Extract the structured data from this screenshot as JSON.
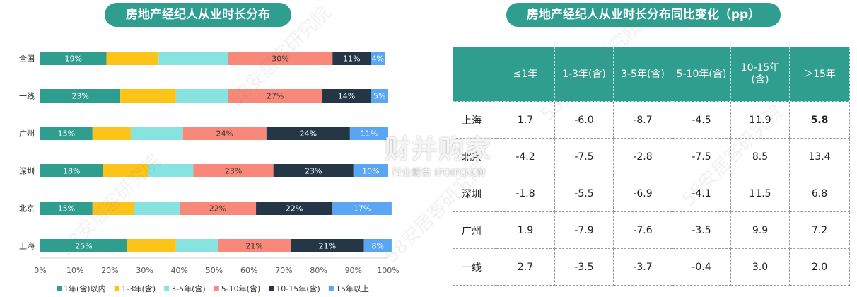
{
  "left_title": "房地产经纪人从业时长分布",
  "right_title": "房地产经纪人从业时长分布同比变化（pp）",
  "colors": [
    "#2f9e8f",
    "#fcc419",
    "#87e3df",
    "#f8897a",
    "#253746",
    "#5ba6f3"
  ],
  "chart_data": [
    {
      "type": "bar",
      "orientation": "horizontal",
      "stacked": true,
      "title": "房地产经纪人从业时长分布",
      "categories": [
        "全国",
        "一线",
        "广州",
        "深圳",
        "北京",
        "上海"
      ],
      "series": [
        {
          "name": "1年(含)以内",
          "values": [
            19,
            23,
            15,
            18,
            15,
            25
          ]
        },
        {
          "name": "1-3年(含)",
          "values": [
            15,
            16,
            11,
            13,
            12,
            14
          ]
        },
        {
          "name": "3-5年(含)",
          "values": [
            20,
            15,
            15,
            13,
            13,
            12
          ]
        },
        {
          "name": "5-10年(含)",
          "values": [
            30,
            27,
            24,
            23,
            22,
            21
          ]
        },
        {
          "name": "10-15年(含)",
          "values": [
            11,
            14,
            24,
            23,
            22,
            21
          ]
        },
        {
          "name": "15年以上",
          "values": [
            4,
            5,
            11,
            10,
            17,
            8
          ]
        }
      ],
      "data_labels": [
        [
          "19%",
          "",
          "",
          "30%",
          "11%",
          "4%"
        ],
        [
          "23%",
          "",
          "",
          "27%",
          "14%",
          "5%"
        ],
        [
          "15%",
          "",
          "",
          "24%",
          "24%",
          "11%"
        ],
        [
          "18%",
          "",
          "",
          "23%",
          "23%",
          "10%"
        ],
        [
          "15%",
          "",
          "",
          "22%",
          "22%",
          "17%"
        ],
        [
          "25%",
          "",
          "",
          "21%",
          "21%",
          "8%"
        ]
      ],
      "xlim": [
        0,
        100
      ],
      "x_ticks": [
        "0%",
        "10%",
        "20%",
        "30%",
        "40%",
        "50%",
        "60%",
        "70%",
        "80%",
        "90%",
        "100%"
      ],
      "legend_position": "bottom"
    },
    {
      "type": "table",
      "title": "房地产经纪人从业时长分布同比变化（pp）",
      "columns": [
        "",
        "≤1年",
        "1-3年(含)",
        "3-5年(含)",
        "5-10年(含)",
        "10-15年\n(含)",
        "＞15年"
      ],
      "rows": [
        [
          "上海",
          "1.7",
          "-6.0",
          "-8.7",
          "-4.5",
          "11.9",
          "5.8"
        ],
        [
          "北京",
          "-4.2",
          "-7.5",
          "-2.8",
          "-7.5",
          "8.5",
          "13.4"
        ],
        [
          "深圳",
          "-1.8",
          "-5.5",
          "-6.9",
          "-4.1",
          "11.5",
          "6.8"
        ],
        [
          "广州",
          "1.9",
          "-7.9",
          "-7.6",
          "-3.5",
          "9.9",
          "7.2"
        ],
        [
          "一线",
          "2.7",
          "-3.5",
          "-3.7",
          "-0.4",
          "3.0",
          "2.0"
        ]
      ],
      "bold_cells": [
        [
          0,
          5
        ]
      ]
    }
  ],
  "watermarks": {
    "diagonal": "58安居客研究院",
    "brand": "财并购家",
    "brand_sub": "行业报告 IPOIPO.CN"
  }
}
